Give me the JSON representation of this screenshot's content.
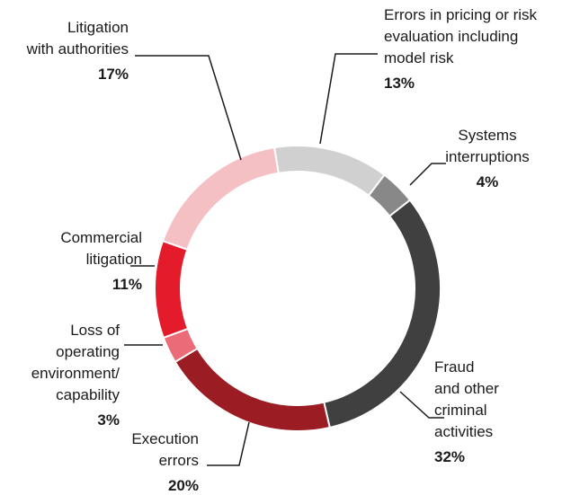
{
  "chart_data": {
    "type": "pie",
    "donut": true,
    "categories": [
      [
        "Errors in pricing or risk",
        "evaluation including",
        "model risk"
      ],
      [
        "Systems",
        "interruptions"
      ],
      [
        "Fraud",
        "and other",
        "criminal",
        "activities"
      ],
      [
        "Execution",
        "errors"
      ],
      [
        "Loss of",
        "operating",
        "environment/",
        "capability"
      ],
      [
        "Commercial",
        "litigation"
      ],
      [
        "Litigation",
        "with authorities"
      ]
    ],
    "values": [
      13,
      4,
      32,
      20,
      3,
      11,
      17
    ],
    "value_labels": [
      "13%",
      "4%",
      "32%",
      "20%",
      "3%",
      "11%",
      "17%"
    ],
    "colors": [
      "#d0d0d0",
      "#888888",
      "#404040",
      "#9b1c22",
      "#ec6b78",
      "#e41b2a",
      "#f4c0c4"
    ]
  }
}
